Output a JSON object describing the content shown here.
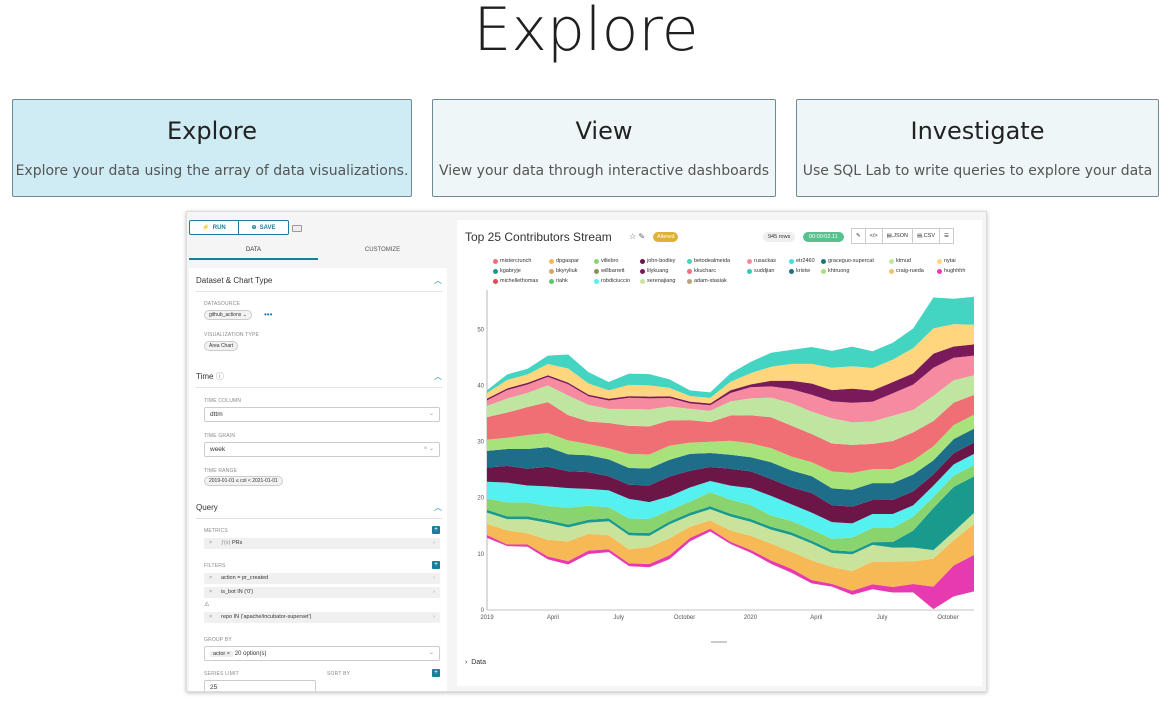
{
  "title": "Explore",
  "cards": [
    {
      "title": "Explore",
      "desc": "Explore your data using the array of data visualizations."
    },
    {
      "title": "View",
      "desc": "View your data through interactive dashboards"
    },
    {
      "title": "Investigate",
      "desc": "Use SQL Lab to write queries to explore your data"
    }
  ],
  "toolbar": {
    "run": "RUN",
    "save": "SAVE"
  },
  "tabs": {
    "data": "DATA",
    "customize": "CUSTOMIZE"
  },
  "sections": {
    "dataset": "Dataset & Chart Type",
    "time": "Time",
    "query": "Query"
  },
  "fields": {
    "datasource_label": "DATASOURCE",
    "datasource": "github_actions",
    "viz_type_label": "VISUALIZATION TYPE",
    "viz_type": "Area Chart",
    "time_column_label": "TIME COLUMN",
    "time_column": "dttm",
    "time_grain_label": "TIME GRAIN",
    "time_grain": "week",
    "time_range_label": "TIME RANGE",
    "time_range": "2019-01-01 ≤ col < 2021-01-01",
    "metrics_label": "METRICS",
    "metric": "PRs",
    "filters_label": "FILTERS",
    "filters": [
      "action = pr_created",
      "is_bot IN ('0')",
      "repo IN ('apache/incubator-superset')"
    ],
    "group_by_label": "GROUP BY",
    "group_by_tag": "actor",
    "group_by_more": "20 option(s)",
    "series_limit_label": "SERIES LIMIT",
    "series_limit": "25",
    "sort_by_label": "SORT BY"
  },
  "chart_header": {
    "title": "Top 25 Contributors Stream",
    "altered": "Altered",
    "rows": "945 rows",
    "time": "00:00:02.11",
    "json": ".JSON",
    "csv": ".CSV"
  },
  "data_section": "Data",
  "colors": {
    "accent": "#1b7d9c",
    "success": "#5ac18e",
    "warning": "#e0b03a"
  },
  "chart_data": {
    "type": "area",
    "title": "Top 25 Contributors Stream",
    "x_ticks": [
      "2019",
      "April",
      "July",
      "October",
      "2020",
      "April",
      "July",
      "October"
    ],
    "ylim": [
      0,
      57
    ],
    "y_ticks": [
      0,
      10,
      20,
      30,
      40,
      50
    ],
    "legend": [
      {
        "name": "mistercrunch",
        "color": "#ef6f75"
      },
      {
        "name": "dpgaspar",
        "color": "#f7b955"
      },
      {
        "name": "villebro",
        "color": "#8ad470"
      },
      {
        "name": "john-bodley",
        "color": "#6b1646"
      },
      {
        "name": "betodealmeida",
        "color": "#44d4c2"
      },
      {
        "name": "rusackas",
        "color": "#f58aa0"
      },
      {
        "name": "etr2460",
        "color": "#3fe0e0"
      },
      {
        "name": "graceguo-supercat",
        "color": "#1a7b70"
      },
      {
        "name": "ktmud",
        "color": "#bfe6a0"
      },
      {
        "name": "nytai",
        "color": "#ffd57e"
      },
      {
        "name": "kgabryje",
        "color": "#1a9a8c"
      },
      {
        "name": "bkyryliuk",
        "color": "#d4a46a"
      },
      {
        "name": "willbarrett",
        "color": "#8f8f52"
      },
      {
        "name": "lilykuang",
        "color": "#7a1a5a"
      },
      {
        "name": "kkucharc",
        "color": "#f07080"
      },
      {
        "name": "suddjian",
        "color": "#32c7b8"
      },
      {
        "name": "kristw",
        "color": "#1e6e8a"
      },
      {
        "name": "khtruong",
        "color": "#a8e27a"
      },
      {
        "name": "craig-rueda",
        "color": "#f5c26b"
      },
      {
        "name": "hughhhh",
        "color": "#e83ab0"
      },
      {
        "name": "michellethomas",
        "color": "#e04b4b"
      },
      {
        "name": "riahk",
        "color": "#5dc86b"
      },
      {
        "name": "robdiciuccio",
        "color": "#55f0f0"
      },
      {
        "name": "serenajiang",
        "color": "#c9e39a"
      },
      {
        "name": "adam-stasiak",
        "color": "#b5a67a"
      }
    ],
    "bands": [
      {
        "name": "hughhhh",
        "color": "#e83ab0",
        "values": [
          0.5,
          0.3,
          0.4,
          0.5,
          0.6,
          0.6,
          0.5,
          0.5,
          0.6,
          0.7,
          0.6,
          0.5,
          0.4,
          0.5,
          0.6,
          0.7,
          0.6,
          0.5,
          0.7,
          0.9,
          1.0,
          1.5,
          4.0,
          5.5,
          6.5
        ]
      },
      {
        "name": "dpgaspar",
        "color": "#f7b955",
        "values": [
          2.0,
          2.5,
          2.0,
          3.0,
          3.5,
          3.0,
          2.5,
          2.5,
          3.0,
          3.0,
          2.0,
          1.5,
          2.0,
          2.5,
          3.0,
          3.0,
          3.5,
          3.0,
          3.5,
          4.0,
          4.5,
          4.0,
          5.0,
          4.5,
          5.5
        ]
      },
      {
        "name": "serenajiang",
        "color": "#c9e39a",
        "values": [
          2.0,
          2.0,
          2.5,
          3.0,
          2.5,
          2.0,
          2.5,
          2.5,
          2.0,
          2.5,
          2.0,
          2.0,
          2.5,
          2.5,
          2.5,
          3.0,
          3.0,
          2.5,
          3.0,
          3.0,
          2.5,
          2.5,
          1.5,
          1.5,
          2.0
        ]
      },
      {
        "name": "kgabryje",
        "color": "#1a9a8c",
        "values": [
          0.5,
          0.5,
          0.5,
          0.5,
          0.5,
          0.5,
          0.5,
          0.5,
          0.5,
          0.5,
          0.5,
          0.5,
          0.5,
          0.5,
          0.5,
          0.5,
          0.5,
          0.5,
          0.5,
          0.5,
          1.0,
          3.0,
          7.5,
          8.0,
          6.5
        ]
      },
      {
        "name": "villebro",
        "color": "#8ad470",
        "values": [
          2.0,
          2.5,
          2.5,
          2.5,
          3.0,
          2.5,
          2.0,
          2.5,
          2.5,
          2.0,
          2.0,
          2.5,
          2.5,
          2.5,
          2.0,
          2.0,
          2.0,
          2.0,
          2.5,
          2.5,
          2.5,
          2.5,
          2.0,
          2.0,
          2.0
        ]
      },
      {
        "name": "robdiciuccio",
        "color": "#55f0f0",
        "values": [
          3.0,
          3.5,
          3.0,
          3.5,
          3.5,
          3.0,
          3.0,
          3.5,
          3.0,
          2.5,
          2.5,
          2.0,
          2.5,
          3.0,
          3.5,
          3.0,
          3.0,
          3.0,
          2.5,
          2.5,
          2.5,
          2.0,
          2.0,
          2.0,
          2.0
        ]
      },
      {
        "name": "john-bodley",
        "color": "#6b1646",
        "values": [
          2.5,
          3.0,
          3.0,
          3.5,
          3.0,
          3.0,
          2.5,
          2.5,
          3.0,
          3.5,
          3.0,
          2.5,
          3.0,
          3.0,
          3.0,
          3.0,
          3.5,
          3.0,
          3.0,
          2.5,
          2.5,
          2.5,
          2.0,
          2.0,
          2.0
        ]
      },
      {
        "name": "kristw",
        "color": "#1e6e8a",
        "values": [
          3.0,
          3.0,
          3.5,
          3.5,
          3.0,
          3.0,
          3.0,
          3.0,
          3.0,
          3.0,
          3.0,
          2.5,
          2.5,
          2.5,
          3.0,
          3.0,
          3.0,
          3.0,
          3.0,
          3.0,
          3.0,
          3.0,
          2.5,
          2.5,
          2.5
        ]
      },
      {
        "name": "khtruong",
        "color": "#a8e27a",
        "values": [
          2.0,
          2.0,
          2.5,
          2.5,
          2.5,
          2.0,
          2.0,
          2.5,
          2.5,
          2.5,
          2.0,
          2.0,
          2.5,
          2.5,
          2.5,
          2.5,
          2.5,
          3.0,
          3.0,
          2.5,
          2.5,
          2.5,
          2.5,
          2.5,
          2.5
        ]
      },
      {
        "name": "mistercrunch",
        "color": "#ef6f75",
        "values": [
          4.0,
          4.5,
          5.0,
          5.5,
          4.5,
          4.0,
          4.5,
          5.0,
          5.0,
          4.5,
          4.0,
          3.5,
          4.5,
          5.0,
          5.5,
          5.5,
          5.0,
          5.0,
          5.0,
          4.5,
          5.0,
          5.0,
          4.5,
          4.0,
          3.5
        ]
      },
      {
        "name": "ktmud",
        "color": "#bfe6a0",
        "values": [
          2.0,
          2.5,
          2.5,
          3.0,
          3.5,
          3.0,
          2.5,
          3.0,
          3.0,
          2.5,
          2.0,
          2.0,
          2.5,
          3.0,
          3.5,
          4.0,
          4.0,
          4.5,
          4.0,
          4.0,
          4.5,
          4.0,
          4.5,
          4.0,
          3.5
        ]
      },
      {
        "name": "rusackas",
        "color": "#f58aa0",
        "values": [
          1.0,
          1.5,
          1.5,
          1.5,
          2.0,
          1.5,
          1.5,
          2.0,
          2.0,
          1.5,
          1.0,
          1.0,
          1.5,
          2.0,
          2.0,
          2.5,
          3.0,
          3.0,
          3.5,
          3.5,
          4.0,
          4.5,
          5.0,
          4.0,
          3.5
        ]
      },
      {
        "name": "lilykuang",
        "color": "#7a1a5a",
        "values": [
          0.3,
          0.3,
          0.3,
          0.3,
          0.3,
          0.3,
          0.3,
          0.3,
          0.3,
          0.3,
          0.3,
          0.3,
          0.5,
          0.5,
          1.0,
          1.5,
          2.0,
          2.0,
          2.5,
          2.0,
          2.0,
          2.0,
          2.5,
          2.0,
          2.0
        ]
      },
      {
        "name": "nytai",
        "color": "#ffd57e",
        "values": [
          1.0,
          1.5,
          1.5,
          2.0,
          2.5,
          2.0,
          1.5,
          2.0,
          2.0,
          1.5,
          1.0,
          1.0,
          1.5,
          2.0,
          2.5,
          3.0,
          3.5,
          4.0,
          4.0,
          4.0,
          4.0,
          4.5,
          4.5,
          4.0,
          3.5
        ]
      },
      {
        "name": "betodealmeida",
        "color": "#44d4c2",
        "values": [
          0.5,
          1.0,
          1.0,
          1.5,
          2.5,
          2.0,
          1.5,
          2.0,
          2.0,
          1.5,
          1.0,
          1.0,
          1.5,
          2.0,
          2.5,
          2.5,
          3.0,
          3.0,
          3.5,
          3.0,
          3.0,
          3.5,
          5.5,
          4.5,
          5.0
        ]
      }
    ]
  }
}
